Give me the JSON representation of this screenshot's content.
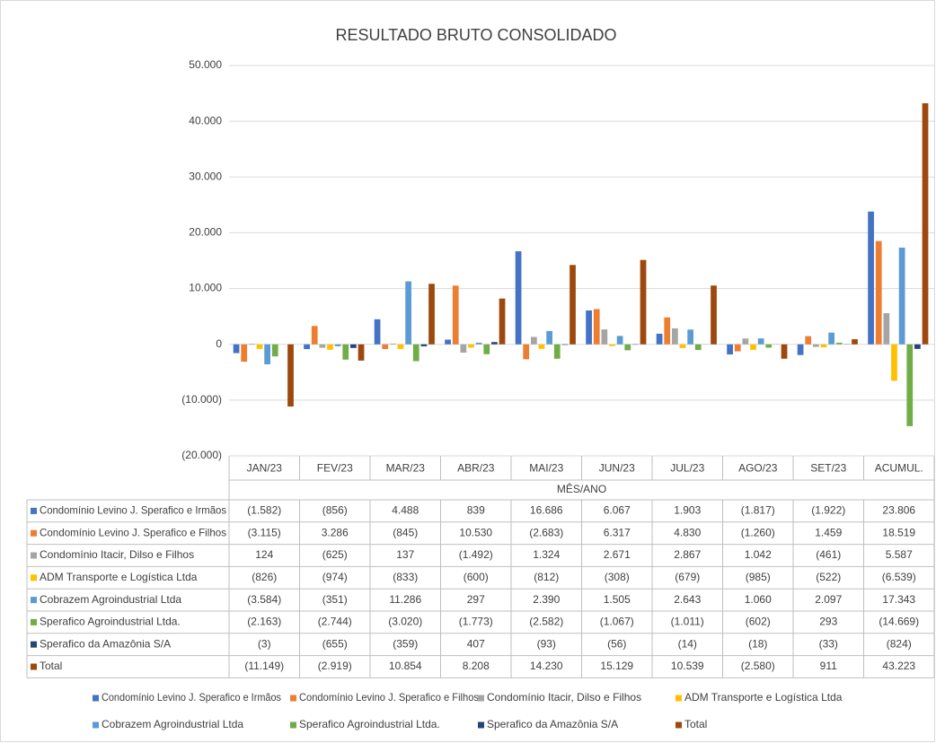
{
  "chart_data": {
    "type": "bar",
    "title": "RESULTADO  BRUTO CONSOLIDADO",
    "x_label": "MÊS/ANO",
    "categories": [
      "JAN/23",
      "FEV/23",
      "MAR/23",
      "ABR/23",
      "MAI/23",
      "JUN/23",
      "JUL/23",
      "AGO/23",
      "SET/23",
      "ACUMUL."
    ],
    "ylim": [
      -20000,
      50000
    ],
    "yticks": [
      {
        "value": 50000,
        "label": "50.000"
      },
      {
        "value": 40000,
        "label": "40.000"
      },
      {
        "value": 30000,
        "label": "30.000"
      },
      {
        "value": 20000,
        "label": "20.000"
      },
      {
        "value": 10000,
        "label": "10.000"
      },
      0,
      {
        "value": -10000,
        "label": "(10.000)"
      },
      {
        "value": -20000,
        "label": "(20.000)"
      }
    ],
    "grid": true,
    "series": [
      {
        "name": "Condomínio Levino J. Sperafico e Irmãos",
        "color": "#4472c4",
        "values": [
          -1582,
          -856,
          4488,
          839,
          16686,
          6067,
          1903,
          -1817,
          -1922,
          23806
        ],
        "value_labels": [
          "(1.582)",
          "(856)",
          "4.488",
          "839",
          "16.686",
          "6.067",
          "1.903",
          "(1.817)",
          "(1.922)",
          "23.806"
        ]
      },
      {
        "name": "Condomínio Levino J. Sperafico e Filhos",
        "color": "#ed7d31",
        "values": [
          -3115,
          3286,
          -845,
          10530,
          -2683,
          6317,
          4830,
          -1260,
          1459,
          18519
        ],
        "value_labels": [
          "(3.115)",
          "3.286",
          "(845)",
          "10.530",
          "(2.683)",
          "6.317",
          "4.830",
          "(1.260)",
          "1.459",
          "18.519"
        ]
      },
      {
        "name": "Condomínio Itacir, Dilso e Filhos",
        "color": "#a5a5a5",
        "values": [
          124,
          -625,
          137,
          -1492,
          1324,
          2671,
          2867,
          1042,
          -461,
          5587
        ],
        "value_labels": [
          "124",
          "(625)",
          "137",
          "(1.492)",
          "1.324",
          "2.671",
          "2.867",
          "1.042",
          "(461)",
          "5.587"
        ]
      },
      {
        "name": "ADM Transporte e Logística Ltda",
        "color": "#ffc000",
        "values": [
          -826,
          -974,
          -833,
          -600,
          -812,
          -308,
          -679,
          -985,
          -522,
          -6539
        ],
        "value_labels": [
          "(826)",
          "(974)",
          "(833)",
          "(600)",
          "(812)",
          "(308)",
          "(679)",
          "(985)",
          "(522)",
          "(6.539)"
        ]
      },
      {
        "name": "Cobrazem Agroindustrial Ltda",
        "color": "#5b9bd5",
        "values": [
          -3584,
          -351,
          11286,
          297,
          2390,
          1505,
          2643,
          1060,
          2097,
          17343
        ],
        "value_labels": [
          "(3.584)",
          "(351)",
          "11.286",
          "297",
          "2.390",
          "1.505",
          "2.643",
          "1.060",
          "2.097",
          "17.343"
        ]
      },
      {
        "name": "Sperafico Agroindustrial Ltda.",
        "color": "#70ad47",
        "values": [
          -2163,
          -2744,
          -3020,
          -1773,
          -2582,
          -1067,
          -1011,
          -602,
          293,
          -14669
        ],
        "value_labels": [
          "(2.163)",
          "(2.744)",
          "(3.020)",
          "(1.773)",
          "(2.582)",
          "(1.067)",
          "(1.011)",
          "(602)",
          "293",
          "(14.669)"
        ]
      },
      {
        "name": "Sperafico da Amazônia S/A",
        "color": "#264478",
        "values": [
          -3,
          -655,
          -359,
          407,
          -93,
          -56,
          -14,
          -18,
          -33,
          -824
        ],
        "value_labels": [
          "(3)",
          "(655)",
          "(359)",
          "407",
          "(93)",
          "(56)",
          "(14)",
          "(18)",
          "(33)",
          "(824)"
        ]
      },
      {
        "name": "Total",
        "color": "#9e480e",
        "values": [
          -11149,
          -2919,
          10854,
          8208,
          14230,
          15129,
          10539,
          -2580,
          911,
          43223
        ],
        "value_labels": [
          "(11.149)",
          "(2.919)",
          "10.854",
          "8.208",
          "14.230",
          "15.129",
          "10.539",
          "(2.580)",
          "911",
          "43.223"
        ]
      }
    ]
  }
}
